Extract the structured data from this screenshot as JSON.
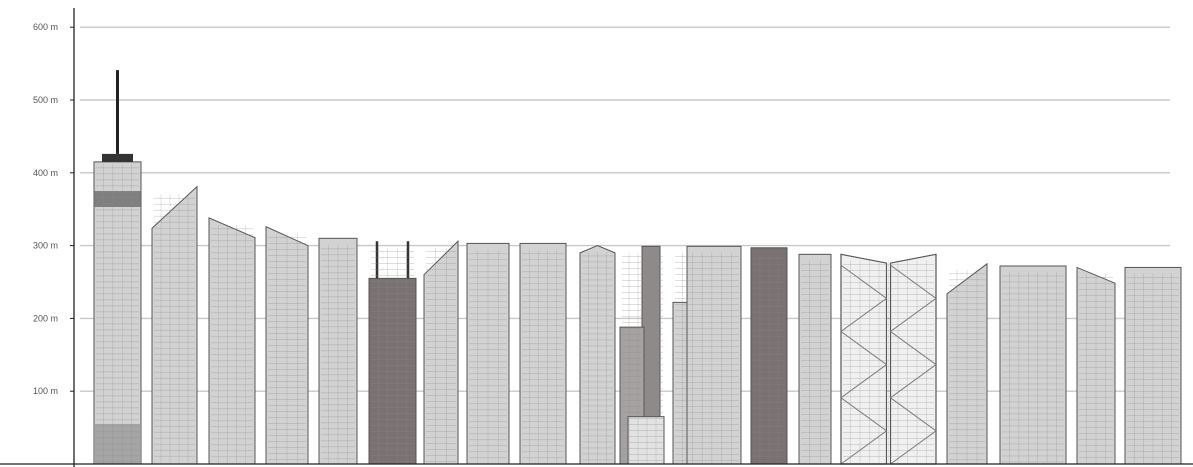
{
  "chart_data": {
    "type": "bar",
    "axis": {
      "unit": "m",
      "ylim": [
        0,
        600
      ],
      "grid": true
    },
    "y_ticks": [
      {
        "value": 100,
        "label": "100 m"
      },
      {
        "value": 200,
        "label": "200 m"
      },
      {
        "value": 300,
        "label": "300 m"
      },
      {
        "value": 400,
        "label": "400 m"
      },
      {
        "value": 500,
        "label": "500 m"
      },
      {
        "value": 600,
        "label": "600 m"
      }
    ],
    "values": [
      541,
      381,
      338,
      326,
      310,
      306,
      306,
      303,
      303,
      300,
      299,
      299,
      297,
      288,
      288,
      275,
      272,
      270,
      270
    ],
    "colors": {
      "building_fill": "#d2d2d2",
      "building_dark": "#7a7272",
      "building_stroke": "#555555",
      "window_line": "#8a8a8a",
      "grid": "#c8c8c8",
      "axis": "#222222"
    }
  }
}
